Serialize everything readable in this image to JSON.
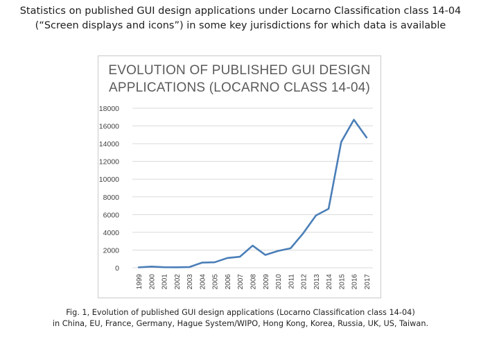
{
  "header": {
    "line1": "Statistics on published GUI design applications under Locarno Classification class 14-04",
    "line2": "(“Screen displays and icons”) in some key jurisdictions for which data is available"
  },
  "caption": {
    "line1": "Fig. 1, Evolution of published GUI design applications (Locarno Classification class 14-04)",
    "line2": "in China, EU, France, Germany, Hague System/WIPO, Hong Kong, Korea, Russia, UK, US, Taiwan."
  },
  "chart_data": {
    "type": "line",
    "title_line1": "EVOLUTION OF PUBLISHED GUI DESIGN",
    "title_line2": "APPLICATIONS (LOCARNO CLASS 14-04)",
    "categories": [
      "1999",
      "2000",
      "2001",
      "2002",
      "2003",
      "2004",
      "2005",
      "2006",
      "2007",
      "2008",
      "2009",
      "2010",
      "2011",
      "2012",
      "2013",
      "2014",
      "2015",
      "2016",
      "2017"
    ],
    "values": [
      50,
      130,
      60,
      50,
      80,
      580,
      620,
      1100,
      1250,
      2500,
      1450,
      1900,
      2200,
      3900,
      5900,
      6650,
      14200,
      16700,
      14700
    ],
    "y_ticks": [
      "0",
      "2000",
      "4000",
      "6000",
      "8000",
      "10000",
      "12000",
      "14000",
      "16000",
      "18000"
    ],
    "ylim": [
      0,
      18000
    ],
    "grid": true,
    "line_color": "#4a7eb8",
    "grid_color": "#d9d9d9"
  }
}
